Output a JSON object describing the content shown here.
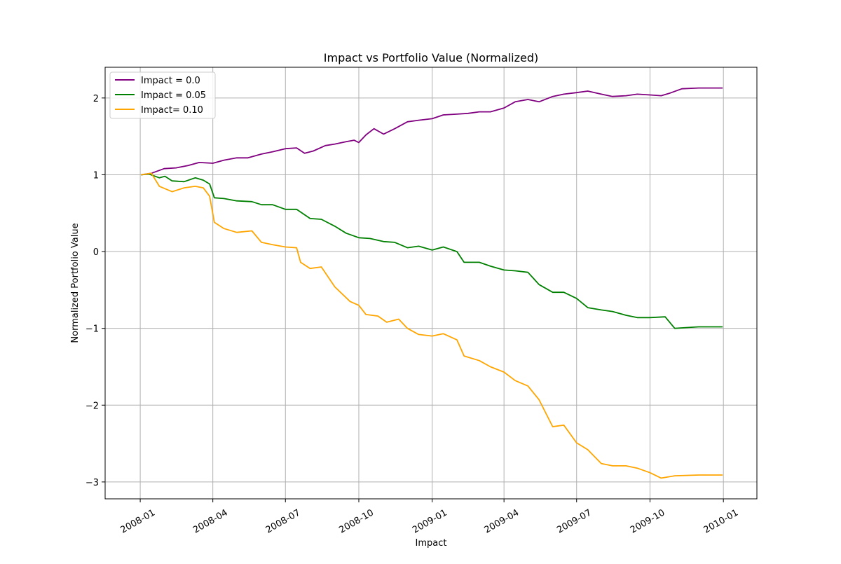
{
  "chart_data": {
    "type": "line",
    "title": "Impact vs Portfolio Value (Normalized)",
    "xlabel": "Impact",
    "ylabel": "Normalized Portfolio Value",
    "x_range": [
      "2007-11-18",
      "2010-02-12"
    ],
    "xlim": [
      "2007-11-18",
      "2010-02-12"
    ],
    "ylim": [
      -3.22,
      2.4
    ],
    "grid": true,
    "legend_position": "upper-left",
    "x_ticks": [
      {
        "date": "2008-01-01",
        "label": "2008-01"
      },
      {
        "date": "2008-04-01",
        "label": "2008-04"
      },
      {
        "date": "2008-07-01",
        "label": "2008-07"
      },
      {
        "date": "2008-10-01",
        "label": "2008-10"
      },
      {
        "date": "2009-01-01",
        "label": "2009-01"
      },
      {
        "date": "2009-04-01",
        "label": "2009-04"
      },
      {
        "date": "2009-07-01",
        "label": "2009-07"
      },
      {
        "date": "2009-10-01",
        "label": "2009-10"
      },
      {
        "date": "2010-01-01",
        "label": "2010-01"
      }
    ],
    "y_ticks": [
      {
        "value": 2,
        "label": "2"
      },
      {
        "value": 1,
        "label": "1"
      },
      {
        "value": 0,
        "label": "0"
      },
      {
        "value": -1,
        "label": "−1"
      },
      {
        "value": -2,
        "label": "−2"
      },
      {
        "value": -3,
        "label": "−3"
      }
    ],
    "series": [
      {
        "name": "Impact = 0.0",
        "color": "#800080",
        "points": [
          [
            "2008-01-02",
            1.0
          ],
          [
            "2008-01-15",
            1.02
          ],
          [
            "2008-01-31",
            1.08
          ],
          [
            "2008-02-15",
            1.09
          ],
          [
            "2008-03-01",
            1.12
          ],
          [
            "2008-03-15",
            1.16
          ],
          [
            "2008-04-01",
            1.15
          ],
          [
            "2008-04-15",
            1.19
          ],
          [
            "2008-05-01",
            1.22
          ],
          [
            "2008-05-15",
            1.22
          ],
          [
            "2008-06-01",
            1.27
          ],
          [
            "2008-06-15",
            1.3
          ],
          [
            "2008-07-01",
            1.34
          ],
          [
            "2008-07-15",
            1.35
          ],
          [
            "2008-07-25",
            1.28
          ],
          [
            "2008-08-05",
            1.31
          ],
          [
            "2008-08-20",
            1.38
          ],
          [
            "2008-09-01",
            1.4
          ],
          [
            "2008-09-15",
            1.43
          ],
          [
            "2008-09-25",
            1.45
          ],
          [
            "2008-10-01",
            1.42
          ],
          [
            "2008-10-10",
            1.52
          ],
          [
            "2008-10-20",
            1.6
          ],
          [
            "2008-11-01",
            1.53
          ],
          [
            "2008-11-15",
            1.6
          ],
          [
            "2008-12-01",
            1.69
          ],
          [
            "2008-12-15",
            1.71
          ],
          [
            "2009-01-01",
            1.73
          ],
          [
            "2009-01-15",
            1.78
          ],
          [
            "2009-02-01",
            1.79
          ],
          [
            "2009-02-15",
            1.8
          ],
          [
            "2009-03-01",
            1.82
          ],
          [
            "2009-03-15",
            1.82
          ],
          [
            "2009-04-01",
            1.87
          ],
          [
            "2009-04-15",
            1.95
          ],
          [
            "2009-05-01",
            1.98
          ],
          [
            "2009-05-15",
            1.95
          ],
          [
            "2009-06-01",
            2.02
          ],
          [
            "2009-06-15",
            2.05
          ],
          [
            "2009-07-01",
            2.07
          ],
          [
            "2009-07-15",
            2.09
          ],
          [
            "2009-08-01",
            2.05
          ],
          [
            "2009-08-15",
            2.02
          ],
          [
            "2009-09-01",
            2.03
          ],
          [
            "2009-09-15",
            2.05
          ],
          [
            "2009-10-01",
            2.04
          ],
          [
            "2009-10-15",
            2.03
          ],
          [
            "2009-10-25",
            2.06
          ],
          [
            "2009-11-10",
            2.12
          ],
          [
            "2009-12-01",
            2.13
          ],
          [
            "2009-12-31",
            2.13
          ]
        ]
      },
      {
        "name": "Impact = 0.05",
        "color": "#008000",
        "points": [
          [
            "2008-01-02",
            1.0
          ],
          [
            "2008-01-12",
            1.01
          ],
          [
            "2008-01-25",
            0.96
          ],
          [
            "2008-02-01",
            0.98
          ],
          [
            "2008-02-10",
            0.92
          ],
          [
            "2008-02-25",
            0.91
          ],
          [
            "2008-03-10",
            0.96
          ],
          [
            "2008-03-20",
            0.93
          ],
          [
            "2008-03-28",
            0.88
          ],
          [
            "2008-04-03",
            0.7
          ],
          [
            "2008-04-15",
            0.69
          ],
          [
            "2008-05-01",
            0.66
          ],
          [
            "2008-05-20",
            0.65
          ],
          [
            "2008-06-01",
            0.61
          ],
          [
            "2008-06-15",
            0.61
          ],
          [
            "2008-07-01",
            0.55
          ],
          [
            "2008-07-15",
            0.55
          ],
          [
            "2008-08-01",
            0.43
          ],
          [
            "2008-08-15",
            0.42
          ],
          [
            "2008-09-01",
            0.33
          ],
          [
            "2008-09-15",
            0.24
          ],
          [
            "2008-10-01",
            0.18
          ],
          [
            "2008-10-15",
            0.17
          ],
          [
            "2008-11-01",
            0.13
          ],
          [
            "2008-11-15",
            0.12
          ],
          [
            "2008-12-01",
            0.05
          ],
          [
            "2008-12-15",
            0.07
          ],
          [
            "2009-01-01",
            0.02
          ],
          [
            "2009-01-15",
            0.06
          ],
          [
            "2009-02-01",
            0.0
          ],
          [
            "2009-02-10",
            -0.14
          ],
          [
            "2009-03-01",
            -0.14
          ],
          [
            "2009-03-15",
            -0.19
          ],
          [
            "2009-04-01",
            -0.24
          ],
          [
            "2009-04-15",
            -0.25
          ],
          [
            "2009-05-01",
            -0.27
          ],
          [
            "2009-05-15",
            -0.43
          ],
          [
            "2009-06-01",
            -0.53
          ],
          [
            "2009-06-15",
            -0.53
          ],
          [
            "2009-07-01",
            -0.61
          ],
          [
            "2009-07-15",
            -0.73
          ],
          [
            "2009-08-01",
            -0.76
          ],
          [
            "2009-08-15",
            -0.78
          ],
          [
            "2009-09-01",
            -0.83
          ],
          [
            "2009-09-15",
            -0.86
          ],
          [
            "2009-10-01",
            -0.86
          ],
          [
            "2009-10-20",
            -0.85
          ],
          [
            "2009-11-01",
            -1.0
          ],
          [
            "2009-11-15",
            -0.99
          ],
          [
            "2009-12-01",
            -0.98
          ],
          [
            "2009-12-31",
            -0.98
          ]
        ]
      },
      {
        "name": "Impact= 0.10",
        "color": "#ffa500",
        "points": [
          [
            "2008-01-02",
            1.0
          ],
          [
            "2008-01-15",
            1.02
          ],
          [
            "2008-01-25",
            0.85
          ],
          [
            "2008-02-10",
            0.78
          ],
          [
            "2008-02-25",
            0.83
          ],
          [
            "2008-03-10",
            0.85
          ],
          [
            "2008-03-20",
            0.83
          ],
          [
            "2008-03-28",
            0.72
          ],
          [
            "2008-04-03",
            0.38
          ],
          [
            "2008-04-15",
            0.3
          ],
          [
            "2008-05-01",
            0.25
          ],
          [
            "2008-05-20",
            0.27
          ],
          [
            "2008-06-01",
            0.12
          ],
          [
            "2008-06-15",
            0.09
          ],
          [
            "2008-07-01",
            0.06
          ],
          [
            "2008-07-15",
            0.05
          ],
          [
            "2008-07-20",
            -0.14
          ],
          [
            "2008-08-01",
            -0.22
          ],
          [
            "2008-08-15",
            -0.2
          ],
          [
            "2008-09-01",
            -0.46
          ],
          [
            "2008-09-20",
            -0.65
          ],
          [
            "2008-10-01",
            -0.7
          ],
          [
            "2008-10-10",
            -0.82
          ],
          [
            "2008-10-25",
            -0.84
          ],
          [
            "2008-11-05",
            -0.92
          ],
          [
            "2008-11-20",
            -0.88
          ],
          [
            "2008-12-01",
            -1.0
          ],
          [
            "2008-12-15",
            -1.08
          ],
          [
            "2009-01-01",
            -1.1
          ],
          [
            "2009-01-15",
            -1.07
          ],
          [
            "2009-02-01",
            -1.15
          ],
          [
            "2009-02-10",
            -1.36
          ],
          [
            "2009-03-01",
            -1.42
          ],
          [
            "2009-03-15",
            -1.5
          ],
          [
            "2009-04-01",
            -1.57
          ],
          [
            "2009-04-15",
            -1.68
          ],
          [
            "2009-05-01",
            -1.75
          ],
          [
            "2009-05-15",
            -1.93
          ],
          [
            "2009-06-01",
            -2.28
          ],
          [
            "2009-06-15",
            -2.26
          ],
          [
            "2009-07-01",
            -2.49
          ],
          [
            "2009-07-15",
            -2.58
          ],
          [
            "2009-08-01",
            -2.76
          ],
          [
            "2009-08-15",
            -2.79
          ],
          [
            "2009-09-01",
            -2.79
          ],
          [
            "2009-09-15",
            -2.82
          ],
          [
            "2009-10-01",
            -2.88
          ],
          [
            "2009-10-15",
            -2.95
          ],
          [
            "2009-11-01",
            -2.92
          ],
          [
            "2009-12-01",
            -2.91
          ],
          [
            "2009-12-31",
            -2.91
          ]
        ]
      }
    ]
  }
}
